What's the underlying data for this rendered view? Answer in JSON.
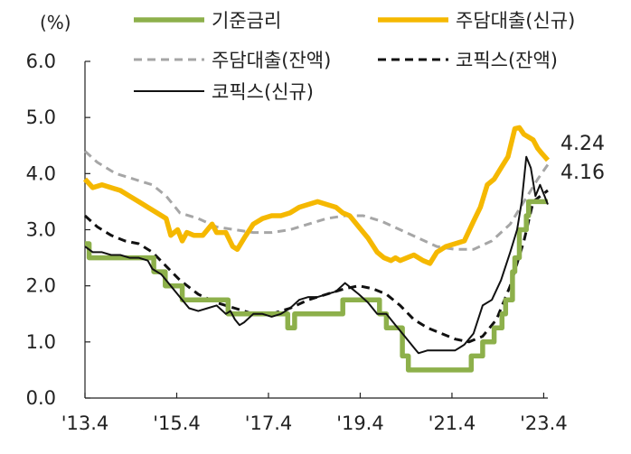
{
  "chart_data": {
    "type": "line",
    "unit": "(%)",
    "ylim": [
      0,
      6
    ],
    "yticks": [
      "0.0",
      "1.0",
      "2.0",
      "3.0",
      "4.0",
      "5.0",
      "6.0"
    ],
    "xlim": [
      2013.33,
      2023.42
    ],
    "xticks": [
      {
        "label": "'13.4",
        "x": 2013.33
      },
      {
        "label": "'15.4",
        "x": 2015.33
      },
      {
        "label": "'17.4",
        "x": 2017.33
      },
      {
        "label": "'19.4",
        "x": 2019.33
      },
      {
        "label": "'21.4",
        "x": 2021.33
      },
      {
        "label": "'23.4",
        "x": 2023.33
      }
    ],
    "grid": false,
    "legend_position": "top",
    "series": [
      {
        "name": "기준금리",
        "color": "#8db04b",
        "style": "solid-thick",
        "step": true,
        "x": [
          2013.33,
          2013.42,
          2014.58,
          2014.83,
          2015.08,
          2015.25,
          2015.45,
          2016.45,
          2017.75,
          2017.9,
          2018.85,
          2018.95,
          2019.5,
          2019.75,
          2019.9,
          2020.15,
          2020.25,
          2020.38,
          2021.55,
          2021.75,
          2022.0,
          2022.25,
          2022.42,
          2022.5,
          2022.65,
          2022.7,
          2022.8,
          2022.95,
          2023.0,
          2023.42
        ],
        "y": [
          2.75,
          2.5,
          2.5,
          2.25,
          2.0,
          2.0,
          1.75,
          1.5,
          1.25,
          1.5,
          1.5,
          1.75,
          1.75,
          1.5,
          1.25,
          1.25,
          0.75,
          0.5,
          0.5,
          0.75,
          1.0,
          1.25,
          1.5,
          1.75,
          2.25,
          2.5,
          3.0,
          3.25,
          3.5,
          3.5
        ]
      },
      {
        "name": "주담대출(신규)",
        "color": "#f5b800",
        "style": "solid-thick",
        "x": [
          2013.33,
          2013.5,
          2013.7,
          2013.9,
          2014.1,
          2014.3,
          2014.5,
          2014.7,
          2014.9,
          2015.1,
          2015.2,
          2015.35,
          2015.45,
          2015.55,
          2015.7,
          2015.9,
          2016.1,
          2016.2,
          2016.4,
          2016.55,
          2016.65,
          2016.8,
          2017.0,
          2017.2,
          2017.4,
          2017.6,
          2017.8,
          2018.0,
          2018.2,
          2018.4,
          2018.6,
          2018.8,
          2018.95,
          2019.1,
          2019.3,
          2019.5,
          2019.7,
          2019.85,
          2020.0,
          2020.1,
          2020.2,
          2020.35,
          2020.5,
          2020.7,
          2020.85,
          2021.0,
          2021.2,
          2021.4,
          2021.6,
          2021.8,
          2021.95,
          2022.1,
          2022.25,
          2022.4,
          2022.55,
          2022.7,
          2022.8,
          2022.9,
          2023.0,
          2023.1,
          2023.2,
          2023.3,
          2023.42
        ],
        "y": [
          3.9,
          3.75,
          3.8,
          3.75,
          3.7,
          3.6,
          3.5,
          3.4,
          3.3,
          3.2,
          2.9,
          3.0,
          2.8,
          2.95,
          2.9,
          2.9,
          3.1,
          2.95,
          2.95,
          2.7,
          2.65,
          2.85,
          3.1,
          3.2,
          3.25,
          3.25,
          3.3,
          3.4,
          3.45,
          3.5,
          3.45,
          3.4,
          3.3,
          3.25,
          3.05,
          2.85,
          2.6,
          2.5,
          2.45,
          2.5,
          2.45,
          2.5,
          2.55,
          2.45,
          2.4,
          2.6,
          2.7,
          2.75,
          2.8,
          3.15,
          3.4,
          3.8,
          3.9,
          4.1,
          4.3,
          4.8,
          4.82,
          4.7,
          4.65,
          4.6,
          4.45,
          4.35,
          4.24
        ]
      },
      {
        "name": "주담대출(잔액)",
        "color": "#a6a6a6",
        "style": "dashed",
        "x": [
          2013.33,
          2013.6,
          2014.0,
          2014.4,
          2014.8,
          2015.1,
          2015.4,
          2015.8,
          2016.2,
          2016.6,
          2017.0,
          2017.4,
          2017.8,
          2018.2,
          2018.6,
          2019.0,
          2019.4,
          2019.8,
          2020.2,
          2020.6,
          2021.0,
          2021.4,
          2021.8,
          2022.2,
          2022.6,
          2022.9,
          2023.2,
          2023.42
        ],
        "y": [
          4.4,
          4.2,
          4.0,
          3.9,
          3.8,
          3.6,
          3.3,
          3.2,
          3.05,
          3.0,
          2.95,
          2.95,
          3.0,
          3.1,
          3.2,
          3.25,
          3.25,
          3.15,
          3.0,
          2.85,
          2.7,
          2.65,
          2.65,
          2.8,
          3.1,
          3.5,
          3.9,
          4.16
        ]
      },
      {
        "name": "코픽스(잔액)",
        "color": "#111111",
        "style": "dashed",
        "x": [
          2013.33,
          2013.6,
          2013.9,
          2014.2,
          2014.5,
          2014.8,
          2015.1,
          2015.4,
          2015.8,
          2016.2,
          2016.6,
          2017.0,
          2017.4,
          2017.8,
          2018.2,
          2018.6,
          2019.0,
          2019.3,
          2019.6,
          2019.9,
          2020.2,
          2020.5,
          2020.8,
          2021.1,
          2021.4,
          2021.7,
          2022.0,
          2022.3,
          2022.6,
          2022.9,
          2023.1,
          2023.42
        ],
        "y": [
          3.25,
          3.05,
          2.9,
          2.8,
          2.75,
          2.6,
          2.35,
          2.1,
          1.85,
          1.7,
          1.6,
          1.5,
          1.5,
          1.6,
          1.75,
          1.85,
          1.95,
          2.0,
          1.95,
          1.85,
          1.65,
          1.4,
          1.25,
          1.15,
          1.05,
          1.0,
          1.1,
          1.4,
          2.0,
          2.8,
          3.5,
          3.7
        ]
      },
      {
        "name": "코픽스(신규)",
        "color": "#111111",
        "style": "solid-thin",
        "x": [
          2013.33,
          2013.5,
          2013.7,
          2013.9,
          2014.1,
          2014.3,
          2014.5,
          2014.7,
          2014.8,
          2015.0,
          2015.2,
          2015.4,
          2015.6,
          2015.8,
          2016.0,
          2016.2,
          2016.4,
          2016.5,
          2016.6,
          2016.7,
          2016.8,
          2017.0,
          2017.2,
          2017.4,
          2017.6,
          2017.8,
          2018.0,
          2018.2,
          2018.4,
          2018.6,
          2018.8,
          2019.0,
          2019.15,
          2019.3,
          2019.5,
          2019.7,
          2019.9,
          2020.1,
          2020.3,
          2020.5,
          2020.6,
          2020.8,
          2021.0,
          2021.2,
          2021.4,
          2021.6,
          2021.8,
          2022.0,
          2022.2,
          2022.4,
          2022.6,
          2022.75,
          2022.85,
          2022.95,
          2023.05,
          2023.15,
          2023.25,
          2023.35,
          2023.42
        ],
        "y": [
          2.7,
          2.6,
          2.6,
          2.55,
          2.55,
          2.5,
          2.5,
          2.45,
          2.3,
          2.2,
          2.0,
          1.8,
          1.6,
          1.55,
          1.6,
          1.65,
          1.5,
          1.55,
          1.4,
          1.3,
          1.35,
          1.5,
          1.5,
          1.45,
          1.5,
          1.6,
          1.75,
          1.8,
          1.8,
          1.85,
          1.9,
          2.05,
          1.95,
          1.85,
          1.7,
          1.5,
          1.5,
          1.3,
          1.1,
          0.9,
          0.8,
          0.85,
          0.85,
          0.85,
          0.85,
          0.95,
          1.15,
          1.65,
          1.75,
          2.1,
          2.6,
          3.0,
          3.5,
          4.3,
          4.1,
          3.6,
          3.8,
          3.6,
          3.45
        ]
      }
    ],
    "end_labels": [
      {
        "text": "4.24",
        "y": 4.24
      },
      {
        "text": "4.16",
        "y": 4.16
      }
    ]
  }
}
